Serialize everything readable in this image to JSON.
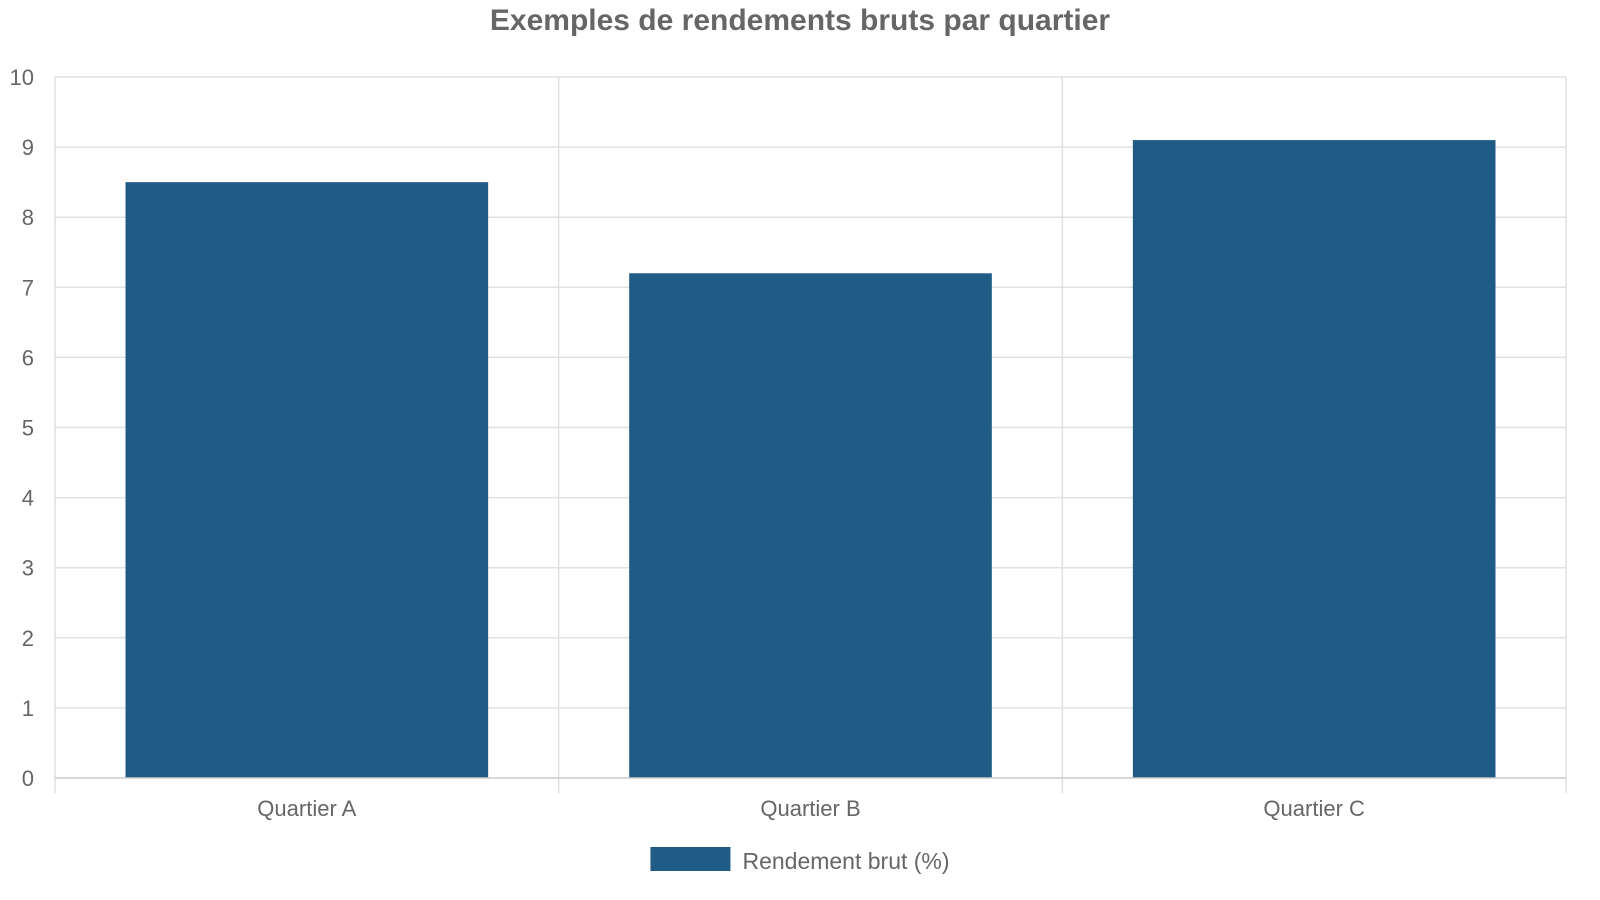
{
  "chart_data": {
    "type": "bar",
    "title": "Exemples de rendements bruts par quartier",
    "categories": [
      "Quartier A",
      "Quartier B",
      "Quartier C"
    ],
    "series": [
      {
        "name": "Rendement brut (%)",
        "values": [
          8.5,
          7.2,
          9.1
        ],
        "color": "#1f5b85"
      }
    ],
    "xlabel": "",
    "ylabel": "",
    "ylim": [
      0,
      10
    ],
    "yticks": [
      "0",
      "1",
      "2",
      "3",
      "4",
      "5",
      "6",
      "7",
      "8",
      "9",
      "10"
    ],
    "grid": true,
    "legend_position": "bottom"
  }
}
